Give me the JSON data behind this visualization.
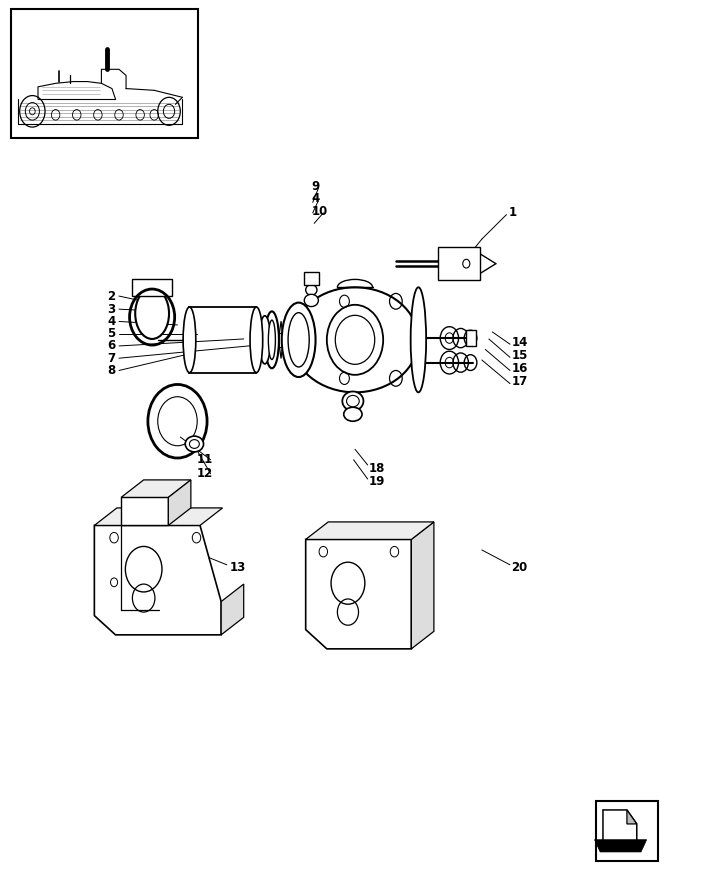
{
  "bg_color": "#ffffff",
  "line_color": "#000000",
  "fig_width": 7.1,
  "fig_height": 8.81,
  "dpi": 100
}
